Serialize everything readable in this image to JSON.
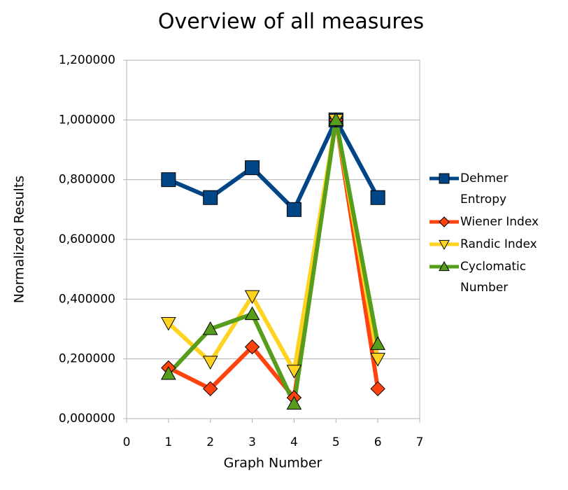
{
  "chart_data": {
    "type": "line",
    "title": "Overview of all measures",
    "x_label": "Graph Number",
    "y_label": "Normalized Results",
    "x": [
      1,
      2,
      3,
      4,
      5,
      6
    ],
    "series": [
      {
        "name": "Dehmer Entropy",
        "color": "#004586",
        "marker": "square",
        "values": [
          0.8,
          0.74,
          0.84,
          0.7,
          1.0,
          0.74
        ]
      },
      {
        "name": "Wiener Index",
        "color": "#ff420e",
        "marker": "diamond",
        "values": [
          0.17,
          0.1,
          0.24,
          0.07,
          1.0,
          0.1
        ]
      },
      {
        "name": "Randic Index",
        "color": "#ffd320",
        "marker": "triangle-down",
        "values": [
          0.32,
          0.19,
          0.41,
          0.16,
          1.0,
          0.2
        ]
      },
      {
        "name": "Cyclomatic Number",
        "color": "#579d1c",
        "marker": "triangle-up",
        "values": [
          0.15,
          0.3,
          0.35,
          0.05,
          1.0,
          0.25
        ]
      }
    ],
    "xlim": [
      0,
      7
    ],
    "xticks": [
      0,
      1,
      2,
      3,
      4,
      5,
      6,
      7
    ],
    "ylim": [
      0,
      1.2
    ],
    "yticks": [
      {
        "value": 0,
        "label": "0,000000"
      },
      {
        "value": 0.2,
        "label": "0,200000"
      },
      {
        "value": 0.4,
        "label": "0,400000"
      },
      {
        "value": 0.6,
        "label": "0,600000"
      },
      {
        "value": 0.8,
        "label": "0,800000"
      },
      {
        "value": 1.0,
        "label": "1,000000"
      },
      {
        "value": 1.2,
        "label": "1,200000"
      }
    ],
    "grid": true,
    "legend": "right"
  }
}
